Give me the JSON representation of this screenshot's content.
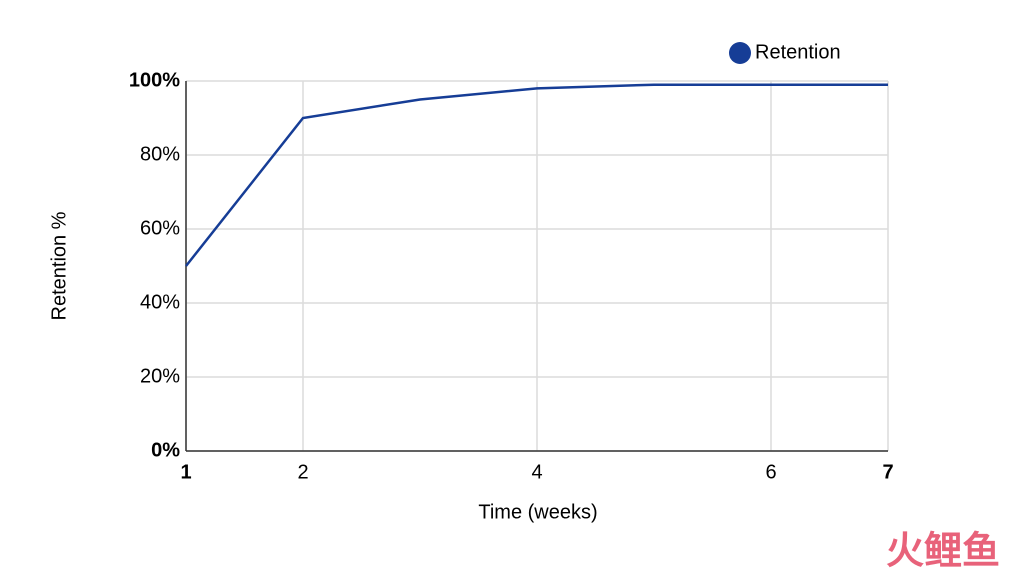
{
  "chart_data": {
    "type": "line",
    "x": [
      1,
      2,
      3,
      4,
      5,
      6,
      7
    ],
    "series": [
      {
        "name": "Retention",
        "color": "#163d96",
        "values": [
          50,
          90,
          95,
          98,
          99,
          99,
          99
        ]
      }
    ],
    "xlabel": "Time (weeks)",
    "ylabel": "Retention %",
    "xlim": [
      1,
      7
    ],
    "xticks": [
      1,
      2,
      4,
      6,
      7
    ],
    "ylim": [
      0,
      100
    ],
    "yticks": [
      {
        "value": 0,
        "label": "0%"
      },
      {
        "value": 20,
        "label": "20%"
      },
      {
        "value": 40,
        "label": "40%"
      },
      {
        "value": 60,
        "label": "60%"
      },
      {
        "value": 80,
        "label": "80%"
      },
      {
        "value": 100,
        "label": "100%"
      }
    ],
    "grid": true,
    "legend": "top-right",
    "watermark": "火鲤鱼"
  }
}
